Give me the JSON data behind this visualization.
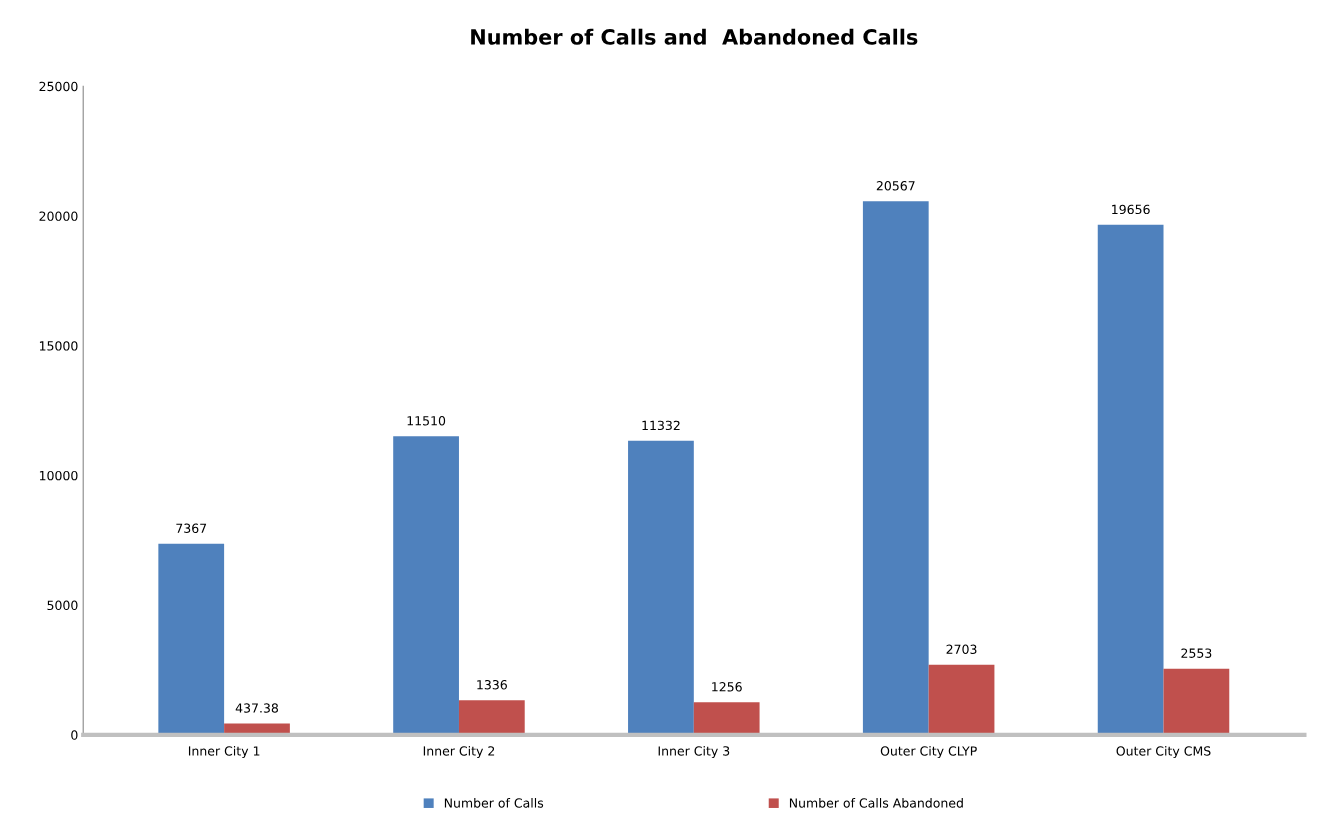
{
  "chart_data": {
    "type": "bar",
    "title": "Number of Calls and  Abandoned Calls",
    "categories": [
      "Inner City 1",
      "Inner City 2",
      "Inner City 3",
      "Outer City CLYP",
      "Outer City CMS"
    ],
    "series": [
      {
        "name": "Number of Calls",
        "color": "#4f81bd",
        "values": [
          7367,
          11510,
          11332,
          20567,
          19656
        ]
      },
      {
        "name": "Number of Calls Abandoned",
        "color": "#c0504d",
        "values": [
          437.38,
          1336,
          1256,
          2703,
          2553
        ]
      }
    ],
    "ylim": [
      0,
      25000
    ],
    "yticks": [
      0,
      5000,
      10000,
      15000,
      20000,
      25000
    ],
    "data_labels": true,
    "grid": false,
    "legend": "bottom"
  }
}
